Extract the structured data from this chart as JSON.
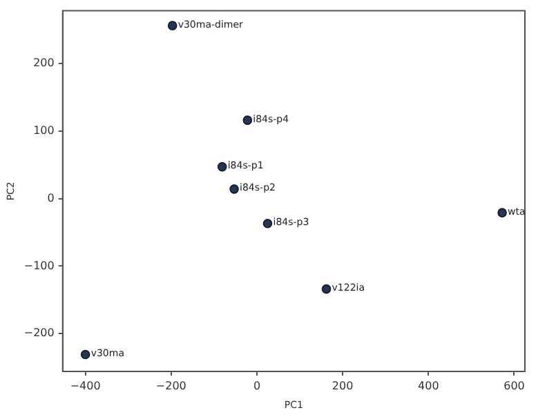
{
  "chart_data": {
    "type": "scatter",
    "xlabel": "PC1",
    "ylabel": "PC2",
    "x": [
      -197,
      -22,
      -81,
      -53,
      25,
      572,
      162,
      -400
    ],
    "series": [
      {
        "color": "#253552",
        "values": [
          256,
          116,
          47,
          14,
          -37,
          -21,
          -134,
          -231
        ]
      }
    ],
    "xlim": [
      -453,
      625
    ],
    "ylim": [
      -256,
      278
    ],
    "xticks": [
      -400,
      -200,
      0,
      200,
      400,
      600
    ],
    "yticks": [
      -200,
      -100,
      0,
      100,
      200
    ],
    "grid": false,
    "legend": false,
    "marker": "circle",
    "annotations": [
      {
        "text": "v30ma-dimer",
        "x": -197,
        "y": 256
      },
      {
        "text": "i84s-p4",
        "x": -22,
        "y": 116
      },
      {
        "text": "i84s-p1",
        "x": -81,
        "y": 47
      },
      {
        "text": "i84s-p2",
        "x": -53,
        "y": 14
      },
      {
        "text": "i84s-p3",
        "x": 25,
        "y": -37
      },
      {
        "text": "wta",
        "x": 572,
        "y": -21
      },
      {
        "text": "v122ia",
        "x": 162,
        "y": -134
      },
      {
        "text": "v30ma",
        "x": -400,
        "y": -231
      }
    ]
  }
}
